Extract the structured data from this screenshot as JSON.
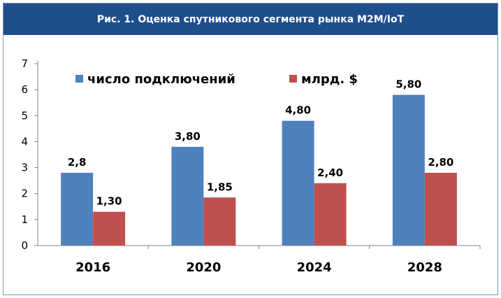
{
  "title": "Рис. 1. Оценка спутникового сегмента рынка М2М/IoT",
  "chart_data": {
    "type": "bar",
    "categories": [
      "2016",
      "2020",
      "2024",
      "2028"
    ],
    "series": [
      {
        "name": "число подключений",
        "values": [
          2.8,
          3.8,
          4.8,
          5.8
        ],
        "labels": [
          "2,8",
          "3,80",
          "4,80",
          "5,80"
        ],
        "color": "#4f81bd"
      },
      {
        "name": "млрд. $",
        "values": [
          1.3,
          1.85,
          2.4,
          2.8
        ],
        "labels": [
          "1,30",
          "1,85",
          "2,40",
          "2,80"
        ],
        "color": "#c0504d"
      }
    ],
    "ylim": [
      0,
      7
    ],
    "yticks": [
      "0",
      "1",
      "2",
      "3",
      "4",
      "5",
      "6",
      "7"
    ],
    "legend": "top",
    "grid": false
  }
}
